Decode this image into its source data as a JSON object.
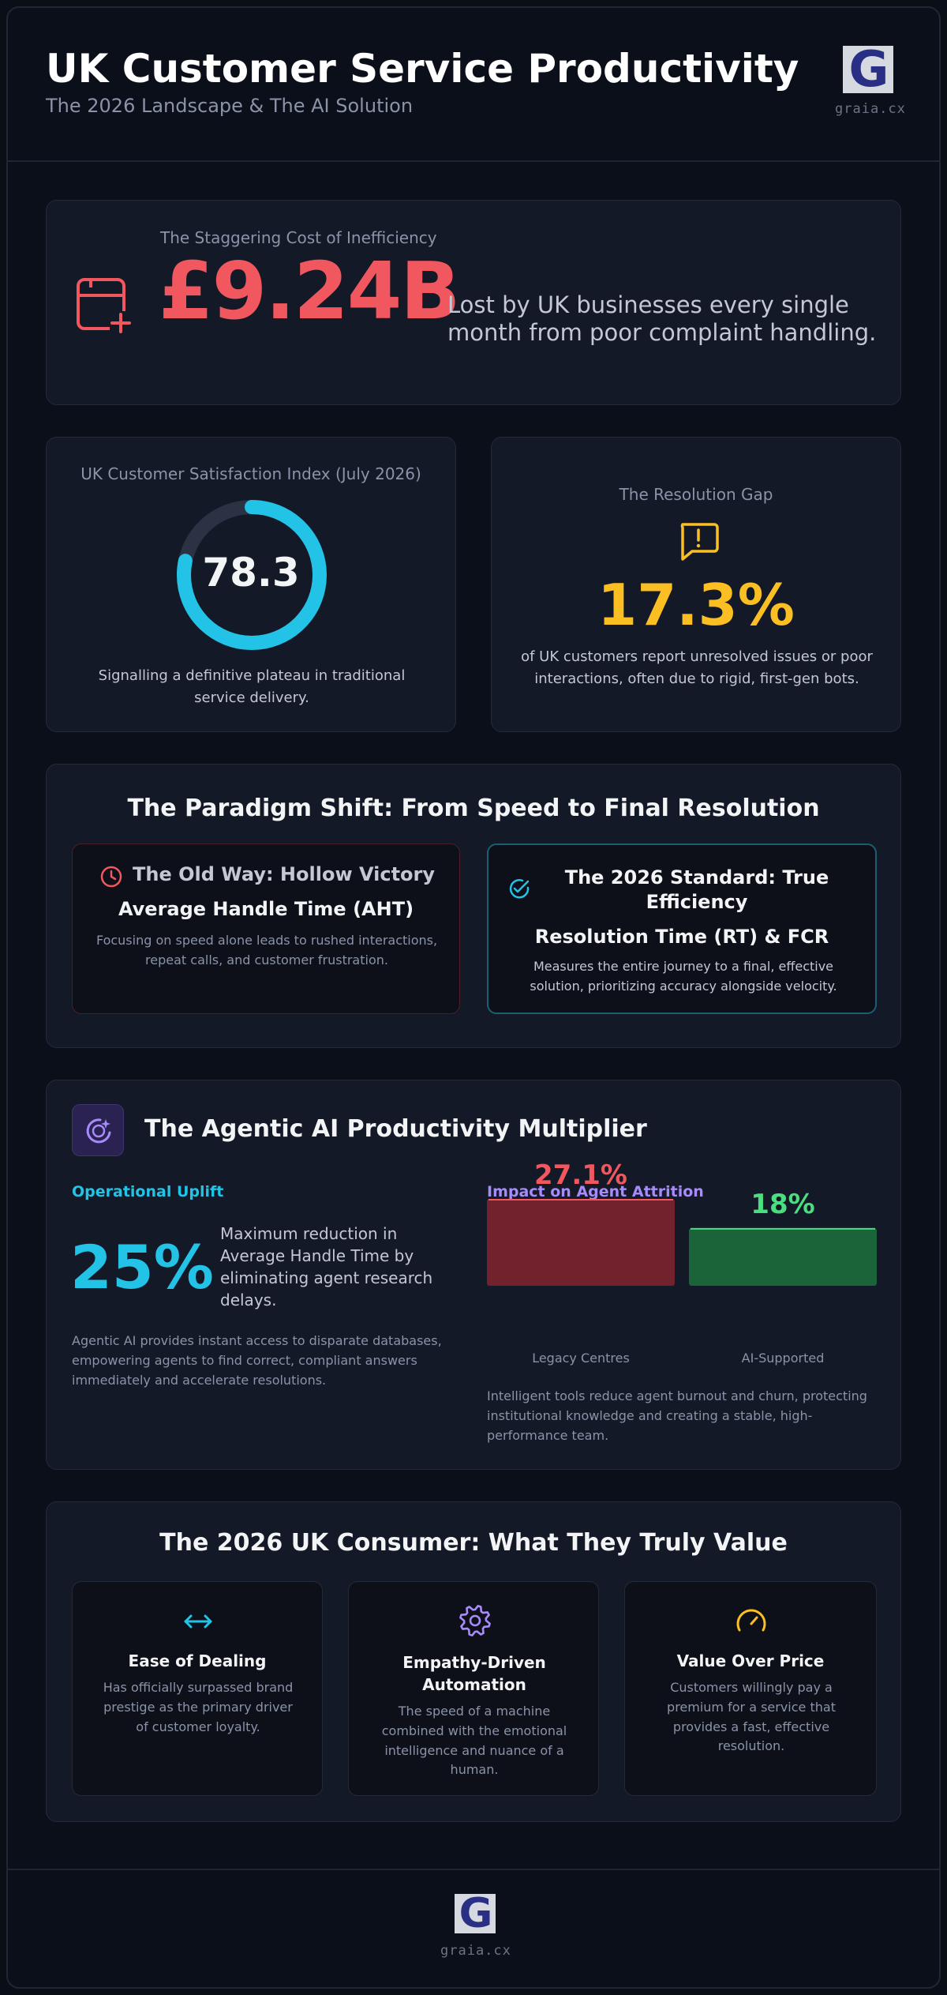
{
  "header": {
    "title": "UK Customer Service Productivity",
    "subtitle": "The 2026 Landscape & The AI Solution",
    "logo_letter": "G",
    "logo_text": "graia.cx"
  },
  "cost": {
    "label": "The Staggering Cost of Inefficiency",
    "value": "£9.24B",
    "description": "Lost by UK businesses every single month from poor complaint handling."
  },
  "satisfaction": {
    "title": "UK Customer Satisfaction Index (July 2026)",
    "value": "78.3",
    "gauge_fraction": 0.783,
    "description": "Signalling a definitive plateau in traditional service delivery."
  },
  "resolution_gap": {
    "title": "The Resolution Gap",
    "value": "17.3%",
    "description": "of UK customers report unresolved issues or poor interactions, often due to rigid, first-gen bots."
  },
  "paradigm": {
    "title": "The Paradigm Shift: From Speed to Final Resolution",
    "old": {
      "heading": "The Old Way: Hollow Victory",
      "metric": "Average Handle Time (AHT)",
      "description": "Focusing on speed alone leads to rushed interactions, repeat calls, and customer frustration."
    },
    "new": {
      "heading": "The 2026 Standard: True Efficiency",
      "metric": "Resolution Time (RT) & FCR",
      "description": "Measures the entire journey to a final, effective solution, prioritizing accuracy alongside velocity."
    }
  },
  "ai": {
    "title": "The Agentic AI Productivity Multiplier",
    "uplift": {
      "label": "Operational Uplift",
      "value": "25%",
      "statement": "Maximum reduction in Average Handle Time by eliminating agent research delays.",
      "description": "Agentic AI provides instant access to disparate databases, empowering agents to find correct, compliant answers immediately and accelerate resolutions."
    },
    "attrition": {
      "label": "Impact on Agent Attrition",
      "description": "Intelligent tools reduce agent burnout and churn, protecting institutional knowledge and creating a stable, high-performance team."
    }
  },
  "chart_data": {
    "type": "bar",
    "categories": [
      "Legacy Centres",
      "AI-Supported"
    ],
    "values": [
      27.1,
      18
    ],
    "data_labels": [
      "27.1%",
      "18%"
    ],
    "colors": [
      "#f0575f",
      "#4ade80"
    ]
  },
  "consumer": {
    "title": "The 2026 UK Consumer: What They Truly Value",
    "items": [
      {
        "icon": "arrows-horizontal-icon",
        "title": "Ease of Dealing",
        "description": "Has officially surpassed brand prestige as the primary driver of customer loyalty."
      },
      {
        "icon": "gear-icon",
        "title": "Empathy-Driven Automation",
        "description": "The speed of a machine combined with the emotional intelligence and nuance of a human."
      },
      {
        "icon": "gauge-icon",
        "title": "Value Over Price",
        "description": "Customers willingly pay a premium for a service that provides a fast, effective resolution."
      }
    ]
  },
  "footer": {
    "logo_letter": "G",
    "logo_text": "graia.cx"
  },
  "colors": {
    "accent_red": "#f0575f",
    "accent_cyan": "#22c3e6",
    "accent_amber": "#fbbf24",
    "accent_green": "#4ade80",
    "accent_purple": "#a78bfa"
  }
}
